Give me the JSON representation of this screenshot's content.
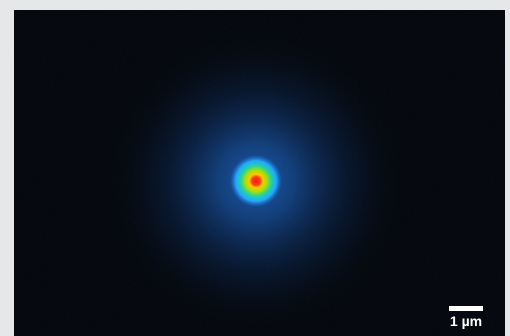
{
  "image": {
    "background_color": "#02060c",
    "frame_color": "#e6e7e8",
    "colormap": [
      "#ff1a10",
      "#ffc800",
      "#a8e000",
      "#20d4a0",
      "#1fa8ff",
      "#1a6cd8",
      "#0c2f66",
      "#02060c"
    ],
    "depicted": "beam-spot"
  },
  "scale_bar": {
    "label": "1 µm"
  }
}
